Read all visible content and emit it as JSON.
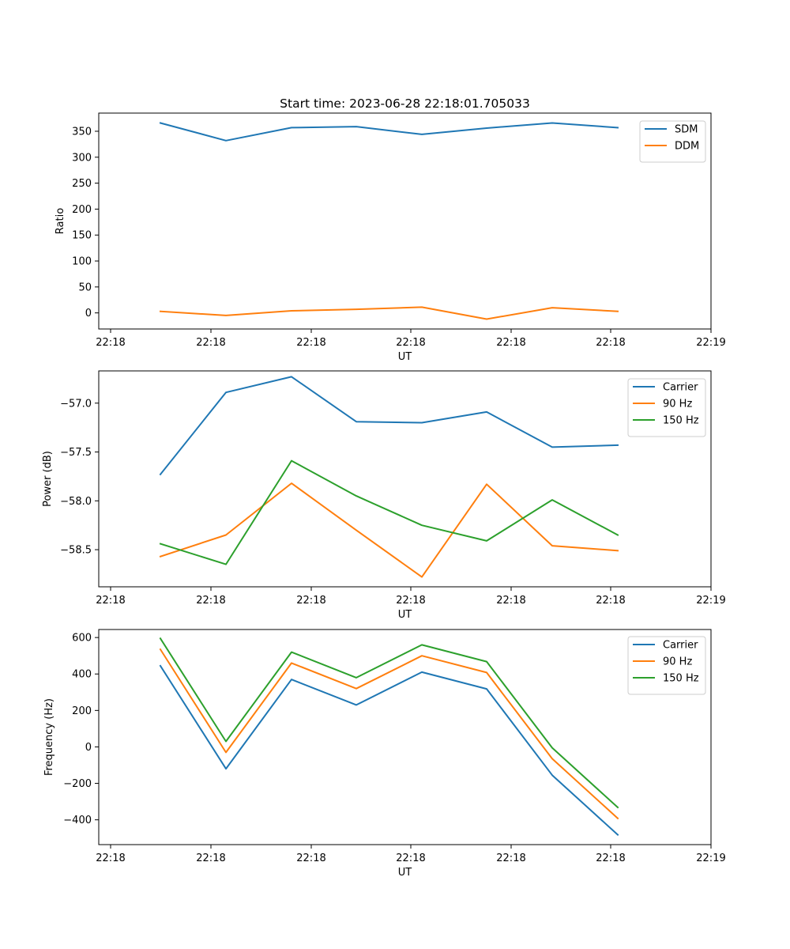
{
  "title": "Start time: 2023-06-28 22:18:01.705033",
  "chart_data": [
    {
      "type": "line",
      "xlabel": "UT",
      "ylabel": "Ratio",
      "x_tick_labels": [
        "22:18",
        "22:18",
        "22:18",
        "22:18",
        "22:18",
        "22:18",
        "22:19"
      ],
      "y_ticks": [
        0,
        50,
        100,
        150,
        200,
        250,
        300,
        350
      ],
      "y_tick_labels": [
        "0",
        "50",
        "100",
        "150",
        "200",
        "250",
        "300",
        "350"
      ],
      "ylim": [
        -31,
        385
      ],
      "grid": false,
      "legend_position": "upper right",
      "series": [
        {
          "name": "SDM",
          "color": "#1f77b4",
          "values": [
            366,
            332,
            357,
            359,
            344,
            356,
            366,
            357
          ]
        },
        {
          "name": "DDM",
          "color": "#ff7f0e",
          "values": [
            3,
            -5,
            4,
            7,
            11,
            -12,
            10,
            3
          ]
        }
      ]
    },
    {
      "type": "line",
      "xlabel": "UT",
      "ylabel": "Power (dB)",
      "x_tick_labels": [
        "22:18",
        "22:18",
        "22:18",
        "22:18",
        "22:18",
        "22:18",
        "22:19"
      ],
      "y_ticks": [
        -58.5,
        -58.0,
        -57.5,
        -57.0
      ],
      "y_tick_labels": [
        "−58.5",
        "−58.0",
        "−57.5",
        "−57.0"
      ],
      "ylim": [
        -58.88,
        -56.67
      ],
      "grid": false,
      "legend_position": "upper right",
      "series": [
        {
          "name": "Carrier",
          "color": "#1f77b4",
          "values": [
            -57.73,
            -56.89,
            -56.73,
            -57.19,
            -57.2,
            -57.09,
            -57.45,
            -57.43
          ]
        },
        {
          "name": "90 Hz",
          "color": "#ff7f0e",
          "values": [
            -58.57,
            -58.35,
            -57.82,
            -58.3,
            -58.78,
            -57.83,
            -58.46,
            -58.51
          ]
        },
        {
          "name": "150 Hz",
          "color": "#2ca02c",
          "values": [
            -58.44,
            -58.65,
            -57.59,
            -57.95,
            -58.25,
            -58.41,
            -57.99,
            -58.35
          ]
        }
      ]
    },
    {
      "type": "line",
      "xlabel": "UT",
      "ylabel": "Frequency (Hz)",
      "x_tick_labels": [
        "22:18",
        "22:18",
        "22:18",
        "22:18",
        "22:18",
        "22:18",
        "22:19"
      ],
      "y_ticks": [
        -400,
        -200,
        0,
        200,
        400,
        600
      ],
      "y_tick_labels": [
        "−400",
        "−200",
        "0",
        "200",
        "400",
        "600"
      ],
      "ylim": [
        -536,
        644
      ],
      "grid": false,
      "legend_position": "upper right",
      "series": [
        {
          "name": "Carrier",
          "color": "#1f77b4",
          "values": [
            445,
            -120,
            370,
            230,
            410,
            318,
            -155,
            -482
          ]
        },
        {
          "name": "90 Hz",
          "color": "#ff7f0e",
          "values": [
            535,
            -30,
            460,
            320,
            500,
            408,
            -65,
            -392
          ]
        },
        {
          "name": "150 Hz",
          "color": "#2ca02c",
          "values": [
            595,
            30,
            520,
            380,
            560,
            468,
            -5,
            -332
          ]
        }
      ]
    }
  ]
}
